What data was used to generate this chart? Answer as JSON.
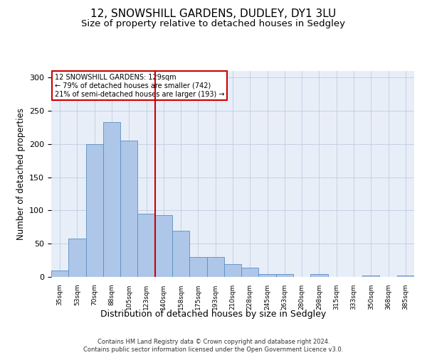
{
  "title": "12, SNOWSHILL GARDENS, DUDLEY, DY1 3LU",
  "subtitle": "Size of property relative to detached houses in Sedgley",
  "xlabel": "Distribution of detached houses by size in Sedgley",
  "ylabel": "Number of detached properties",
  "categories": [
    "35sqm",
    "53sqm",
    "70sqm",
    "88sqm",
    "105sqm",
    "123sqm",
    "140sqm",
    "158sqm",
    "175sqm",
    "193sqm",
    "210sqm",
    "228sqm",
    "245sqm",
    "263sqm",
    "280sqm",
    "298sqm",
    "315sqm",
    "333sqm",
    "350sqm",
    "368sqm",
    "385sqm"
  ],
  "values": [
    10,
    58,
    200,
    233,
    205,
    95,
    93,
    70,
    30,
    30,
    19,
    14,
    4,
    4,
    0,
    4,
    0,
    0,
    2,
    0,
    2
  ],
  "bar_color": "#aec6e8",
  "bar_edge_color": "#5a8fc2",
  "vline_x": 5.5,
  "vline_color": "#cc0000",
  "annotation_text": "12 SNOWSHILL GARDENS: 129sqm\n← 79% of detached houses are smaller (742)\n21% of semi-detached houses are larger (193) →",
  "annotation_box_color": "#ffffff",
  "annotation_box_edge": "#cc0000",
  "ylim": [
    0,
    310
  ],
  "yticks": [
    0,
    50,
    100,
    150,
    200,
    250,
    300
  ],
  "background_color": "#e8eef8",
  "footer": "Contains HM Land Registry data © Crown copyright and database right 2024.\nContains public sector information licensed under the Open Government Licence v3.0.",
  "title_fontsize": 11,
  "subtitle_fontsize": 9.5,
  "xlabel_fontsize": 9,
  "ylabel_fontsize": 8.5
}
